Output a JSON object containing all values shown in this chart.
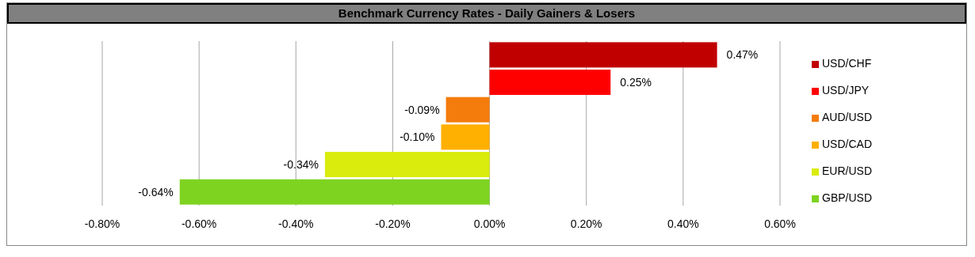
{
  "chart_data": {
    "type": "bar",
    "title": "Benchmark Currency Rates - Daily Gainers & Losers",
    "orientation": "horizontal",
    "stacked": true,
    "categories": [
      null,
      null,
      null,
      null,
      null,
      null
    ],
    "series": [
      {
        "name": "USD/CHF",
        "color": "#c00000",
        "values": [
          0.47,
          null,
          null,
          null,
          null,
          null
        ],
        "value_labels": [
          "0.47%",
          null,
          null,
          null,
          null,
          null
        ]
      },
      {
        "name": "USD/JPY",
        "color": "#ff0000",
        "values": [
          null,
          0.25,
          null,
          null,
          null,
          null
        ],
        "value_labels": [
          null,
          "0.25%",
          null,
          null,
          null,
          null
        ]
      },
      {
        "name": "AUD/USD",
        "color": "#f47c0c",
        "values": [
          null,
          null,
          -0.09,
          null,
          null,
          null
        ],
        "value_labels": [
          null,
          null,
          "-0.09%",
          null,
          null,
          null
        ]
      },
      {
        "name": "USD/CAD",
        "color": "#ffb000",
        "values": [
          null,
          null,
          null,
          -0.1,
          null,
          null
        ],
        "value_labels": [
          null,
          null,
          null,
          "-0.10%",
          null,
          null
        ]
      },
      {
        "name": "EUR/USD",
        "color": "#d9ec0c",
        "values": [
          null,
          null,
          null,
          null,
          -0.34,
          null
        ],
        "value_labels": [
          null,
          null,
          null,
          null,
          "-0.34%",
          null
        ]
      },
      {
        "name": "GBP/USD",
        "color": "#7ed321",
        "values": [
          null,
          null,
          null,
          null,
          null,
          -0.64
        ],
        "value_labels": [
          null,
          null,
          null,
          null,
          null,
          "-0.64%"
        ]
      }
    ],
    "xlim": [
      -0.8,
      0.6
    ],
    "xticks": [
      {
        "value": -0.8,
        "label": "-0.80%"
      },
      {
        "value": -0.6,
        "label": "-0.60%"
      },
      {
        "value": -0.4,
        "label": "-0.40%"
      },
      {
        "value": -0.2,
        "label": "-0.20%"
      },
      {
        "value": 0,
        "label": "0.00%"
      },
      {
        "value": 0.2,
        "label": "0.20%"
      },
      {
        "value": 0.4,
        "label": "0.40%"
      },
      {
        "value": 0.6,
        "label": "0.60%"
      }
    ],
    "grid": "x",
    "legend": "right",
    "tick_labels": "x"
  }
}
